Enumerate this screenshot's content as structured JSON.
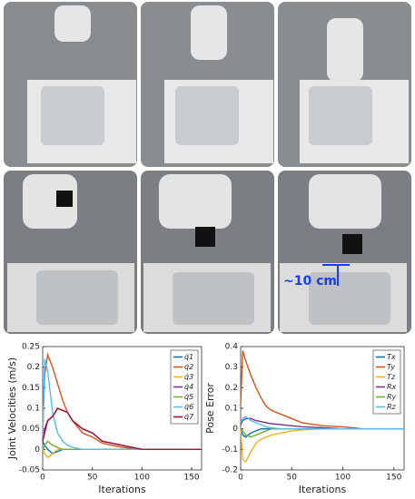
{
  "annotation": "~10 cm",
  "chart_data": [
    {
      "type": "line",
      "ylabel": "Joint Velocities (m/s)",
      "xlabel": "Iterations",
      "xlim": [
        0,
        160
      ],
      "xticks": [
        0,
        50,
        100,
        150
      ],
      "ylim": [
        -0.05,
        0.25
      ],
      "yticks": [
        -0.05,
        0,
        0.05,
        0.1,
        0.15,
        0.2,
        0.25
      ],
      "legend": "upper right",
      "x": [
        0,
        2,
        5,
        10,
        15,
        20,
        25,
        30,
        40,
        50,
        60,
        80,
        100,
        120,
        140,
        160
      ],
      "series": [
        {
          "name": "q̇1",
          "color": "#0072bd",
          "values": [
            0.02,
            0.01,
            0,
            -0.01,
            -0.005,
            0,
            0,
            0,
            0,
            0,
            0,
            0,
            0,
            0,
            0,
            0
          ]
        },
        {
          "name": "q̇2",
          "color": "#d95319",
          "values": [
            0.04,
            0.18,
            0.23,
            0.2,
            0.16,
            0.12,
            0.09,
            0.07,
            0.04,
            0.03,
            0.015,
            0.005,
            0,
            0,
            0,
            0
          ]
        },
        {
          "name": "q̇3",
          "color": "#edb120",
          "values": [
            0,
            -0.01,
            -0.02,
            -0.01,
            0,
            0,
            0,
            0,
            0,
            0,
            0,
            0,
            0,
            0,
            0,
            0
          ]
        },
        {
          "name": "q̇4",
          "color": "#7e2f8e",
          "values": [
            0.02,
            0.05,
            0.07,
            0.08,
            0.1,
            0.095,
            0.09,
            0.07,
            0.05,
            0.04,
            0.02,
            0.01,
            0,
            0,
            0,
            0
          ]
        },
        {
          "name": "q̇5",
          "color": "#77ac30",
          "values": [
            0,
            0.01,
            0.02,
            0.01,
            0.005,
            0,
            0,
            0,
            0,
            0,
            0,
            0,
            0,
            0,
            0,
            0
          ]
        },
        {
          "name": "q̇6",
          "color": "#4dbeee",
          "values": [
            0.03,
            0.22,
            0.19,
            0.09,
            0.04,
            0.02,
            0.01,
            0.005,
            0,
            0,
            0,
            0,
            0,
            0,
            0,
            0
          ]
        },
        {
          "name": "q̇7",
          "color": "#a2142f",
          "values": [
            0.02,
            0.04,
            0.07,
            0.08,
            0.1,
            0.095,
            0.09,
            0.07,
            0.05,
            0.04,
            0.02,
            0.01,
            0,
            0,
            0,
            0
          ]
        }
      ]
    },
    {
      "type": "line",
      "ylabel": "Pose Error",
      "xlabel": "Iterations",
      "xlim": [
        0,
        160
      ],
      "xticks": [
        0,
        50,
        100,
        150
      ],
      "ylim": [
        -0.2,
        0.4
      ],
      "yticks": [
        -0.2,
        -0.1,
        0,
        0.1,
        0.2,
        0.3,
        0.4
      ],
      "legend": "upper right",
      "x": [
        0,
        2,
        5,
        10,
        15,
        20,
        25,
        30,
        40,
        50,
        60,
        80,
        100,
        120,
        140,
        160
      ],
      "series": [
        {
          "name": "Tx",
          "color": "#0072bd",
          "values": [
            0,
            -0.03,
            -0.04,
            -0.02,
            -0.01,
            0,
            0,
            0,
            0,
            0,
            0,
            0,
            0,
            0,
            0,
            0
          ]
        },
        {
          "name": "Ty",
          "color": "#d95319",
          "values": [
            0.12,
            0.38,
            0.33,
            0.26,
            0.2,
            0.15,
            0.11,
            0.09,
            0.07,
            0.05,
            0.03,
            0.015,
            0.01,
            0,
            0,
            0
          ]
        },
        {
          "name": "Tz",
          "color": "#edb120",
          "values": [
            0,
            -0.15,
            -0.16,
            -0.11,
            -0.07,
            -0.05,
            -0.04,
            -0.03,
            -0.02,
            -0.01,
            -0.005,
            0,
            0,
            0,
            0,
            0
          ]
        },
        {
          "name": "Rx",
          "color": "#7e2f8e",
          "values": [
            0.02,
            0.04,
            0.05,
            0.05,
            0.04,
            0.035,
            0.03,
            0.025,
            0.02,
            0.015,
            0.01,
            0.005,
            0,
            0,
            0,
            0
          ]
        },
        {
          "name": "Ry",
          "color": "#77ac30",
          "values": [
            0,
            -0.01,
            -0.03,
            -0.04,
            -0.03,
            -0.02,
            -0.01,
            0,
            0,
            0,
            0,
            0,
            0,
            0,
            0,
            0
          ]
        },
        {
          "name": "Rz",
          "color": "#4dbeee",
          "values": [
            0.03,
            0.05,
            0.06,
            0.04,
            0.03,
            0.02,
            0.01,
            0.005,
            0,
            0,
            0,
            0,
            0,
            0,
            0,
            0
          ]
        }
      ]
    }
  ]
}
